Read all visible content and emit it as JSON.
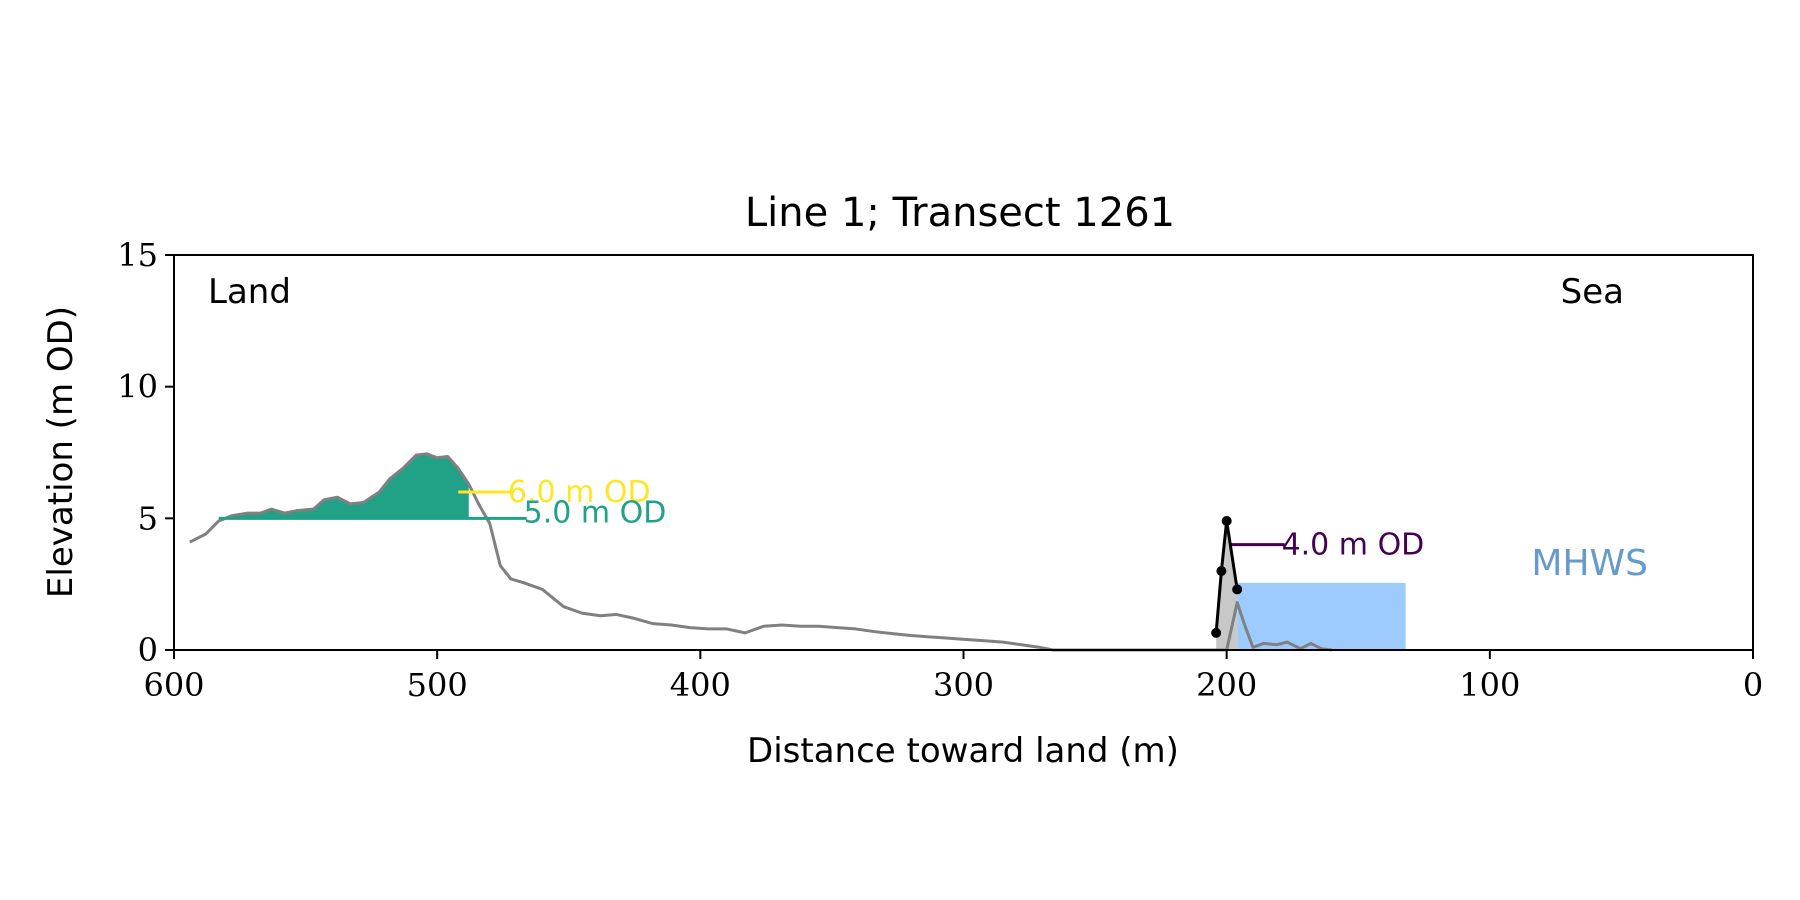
{
  "chart_data": {
    "type": "area",
    "title": "Line 1; Transect 1261",
    "xlabel": "Distance toward land (m)",
    "ylabel": "Elevation (m OD)",
    "xlim": [
      600,
      0
    ],
    "ylim": [
      0,
      15
    ],
    "xticks": [
      600,
      500,
      400,
      300,
      200,
      100,
      0
    ],
    "yticks": [
      0,
      5,
      10,
      15
    ],
    "grid": false,
    "corner_labels": {
      "left": "Land",
      "right": "Sea"
    },
    "colors": {
      "profile": "#808080",
      "level_6": "#fde725",
      "level_5": "#21a185",
      "level_4": "#440154",
      "mhws_fill": "#9dcbff",
      "mhws_text": "#6699cc",
      "barrier": "#000000",
      "barrier_fill": "#c8c8c8"
    },
    "profile": [
      [
        594,
        4.1
      ],
      [
        588,
        4.4
      ],
      [
        583,
        4.9
      ],
      [
        578,
        5.1
      ],
      [
        572,
        5.2
      ],
      [
        567,
        5.2
      ],
      [
        563,
        5.35
      ],
      [
        558,
        5.2
      ],
      [
        553,
        5.3
      ],
      [
        547,
        5.35
      ],
      [
        543,
        5.7
      ],
      [
        538,
        5.8
      ],
      [
        533,
        5.55
      ],
      [
        528,
        5.6
      ],
      [
        522,
        6.0
      ],
      [
        518,
        6.5
      ],
      [
        513,
        6.9
      ],
      [
        508,
        7.4
      ],
      [
        504,
        7.45
      ],
      [
        500,
        7.3
      ],
      [
        496,
        7.35
      ],
      [
        492,
        6.9
      ],
      [
        488,
        6.3
      ],
      [
        484,
        5.5
      ],
      [
        480,
        4.8
      ],
      [
        476,
        3.2
      ],
      [
        472,
        2.7
      ],
      [
        467,
        2.55
      ],
      [
        460,
        2.3
      ],
      [
        452,
        1.65
      ],
      [
        445,
        1.4
      ],
      [
        438,
        1.3
      ],
      [
        432,
        1.35
      ],
      [
        425,
        1.2
      ],
      [
        418,
        1.0
      ],
      [
        411,
        0.95
      ],
      [
        404,
        0.85
      ],
      [
        397,
        0.8
      ],
      [
        390,
        0.8
      ],
      [
        383,
        0.65
      ],
      [
        376,
        0.9
      ],
      [
        369,
        0.95
      ],
      [
        362,
        0.9
      ],
      [
        355,
        0.9
      ],
      [
        348,
        0.85
      ],
      [
        341,
        0.8
      ],
      [
        334,
        0.7
      ],
      [
        327,
        0.62
      ],
      [
        320,
        0.55
      ],
      [
        313,
        0.5
      ],
      [
        306,
        0.45
      ],
      [
        299,
        0.4
      ],
      [
        292,
        0.35
      ],
      [
        285,
        0.3
      ],
      [
        278,
        0.2
      ],
      [
        271,
        0.1
      ],
      [
        266,
        0.0
      ],
      [
        200,
        0.0
      ],
      [
        196,
        1.8
      ],
      [
        193,
        0.9
      ],
      [
        190,
        0.1
      ],
      [
        186,
        0.25
      ],
      [
        181,
        0.2
      ],
      [
        177,
        0.3
      ],
      [
        172,
        0.05
      ],
      [
        168,
        0.25
      ],
      [
        164,
        0.05
      ],
      [
        160,
        0.0
      ]
    ],
    "levels": [
      {
        "label": "6.0 m OD",
        "value": 6.0,
        "label_x": 472,
        "fill_from": 522,
        "fill_to": 492
      },
      {
        "label": "5.0 m OD",
        "value": 5.0,
        "label_x": 466,
        "fill_from": 583,
        "fill_to": 488
      },
      {
        "label": "4.0 m OD",
        "value": 4.0,
        "label_x": 178,
        "line_from": 199
      }
    ],
    "barrier": [
      [
        204,
        0.65
      ],
      [
        202,
        3.0
      ],
      [
        200,
        4.9
      ],
      [
        196,
        2.3
      ]
    ],
    "mhws": {
      "label": "MHWS",
      "x_from": 196,
      "x_to": 132,
      "y_from": 0,
      "y_to": 2.55
    }
  }
}
